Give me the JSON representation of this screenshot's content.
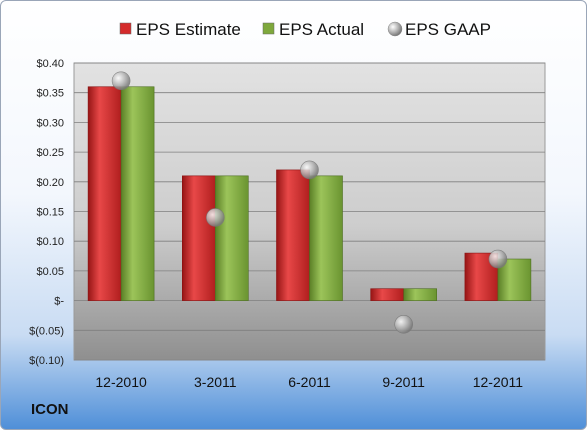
{
  "ticker": "ICON",
  "colors": {
    "estimate": "#d42b2b",
    "actual": "#7ea83c",
    "gaap": "#a9a9a9"
  },
  "chart_data": {
    "type": "bar",
    "categories": [
      "12-2010",
      "3-2011",
      "6-2011",
      "9-2011",
      "12-2011"
    ],
    "series": [
      {
        "name": "EPS Estimate",
        "kind": "bar",
        "values": [
          0.36,
          0.21,
          0.22,
          0.02,
          0.08
        ]
      },
      {
        "name": "EPS Actual",
        "kind": "bar",
        "values": [
          0.36,
          0.21,
          0.21,
          0.02,
          0.07
        ]
      },
      {
        "name": "EPS GAAP",
        "kind": "marker",
        "values": [
          0.37,
          0.14,
          0.22,
          -0.04,
          0.07
        ]
      }
    ],
    "ylim": [
      -0.1,
      0.4
    ],
    "yticks": [
      0.4,
      0.35,
      0.3,
      0.25,
      0.2,
      0.15,
      0.1,
      0.05,
      0.0,
      -0.05,
      -0.1
    ],
    "ytick_labels": [
      "$0.40",
      "$0.35",
      "$0.30",
      "$0.25",
      "$0.20",
      "$0.15",
      "$0.10",
      "$0.05",
      "$-",
      "$(0.05)",
      "$(0.10)"
    ],
    "legend_position": "top",
    "grid": true
  }
}
